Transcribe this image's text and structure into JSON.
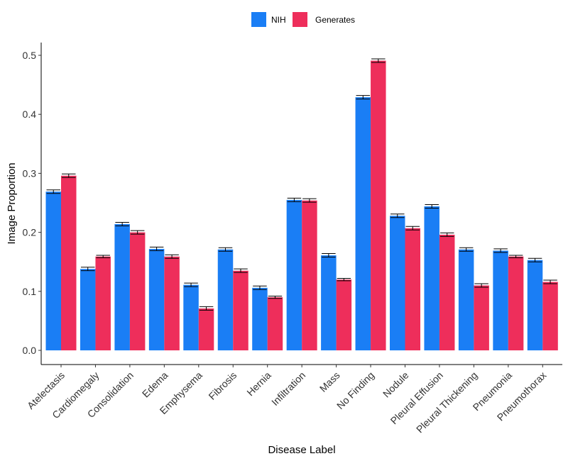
{
  "chart_data": {
    "type": "bar",
    "title": "",
    "xlabel": "Disease Label",
    "ylabel": "Image Proportion",
    "ylim": [
      0,
      0.5
    ],
    "yticks": [
      "0.0",
      "0.1",
      "0.2",
      "0.3",
      "0.4",
      "0.5"
    ],
    "ytick_values": [
      0,
      0.1,
      0.2,
      0.3,
      0.4,
      0.5
    ],
    "legend_position": "top",
    "categories": [
      "Atelectasis",
      "Cardiomegaly",
      "Consolidation",
      "Edema",
      "Emphysema",
      "Fibrosis",
      "Hernia",
      "Infiltration",
      "Mass",
      "No Finding",
      "Nodule",
      "Pleural Effusion",
      "Pleural Thickening",
      "Pneumonia",
      "Pneumothorax"
    ],
    "series": [
      {
        "name": "NIH",
        "color": "#1a7ef5",
        "values": [
          0.269,
          0.138,
          0.214,
          0.172,
          0.111,
          0.171,
          0.106,
          0.255,
          0.161,
          0.429,
          0.228,
          0.244,
          0.171,
          0.169,
          0.153
        ],
        "errors": [
          0.003,
          0.003,
          0.003,
          0.003,
          0.003,
          0.003,
          0.003,
          0.003,
          0.003,
          0.003,
          0.003,
          0.003,
          0.003,
          0.003,
          0.003
        ]
      },
      {
        "name": "Generates",
        "color": "#ee2e5b",
        "values": [
          0.296,
          0.159,
          0.2,
          0.159,
          0.071,
          0.135,
          0.09,
          0.254,
          0.12,
          0.491,
          0.207,
          0.196,
          0.11,
          0.159,
          0.116
        ],
        "errors": [
          0.003,
          0.002,
          0.003,
          0.003,
          0.003,
          0.003,
          0.002,
          0.003,
          0.002,
          0.003,
          0.003,
          0.003,
          0.003,
          0.002,
          0.003
        ]
      }
    ]
  }
}
